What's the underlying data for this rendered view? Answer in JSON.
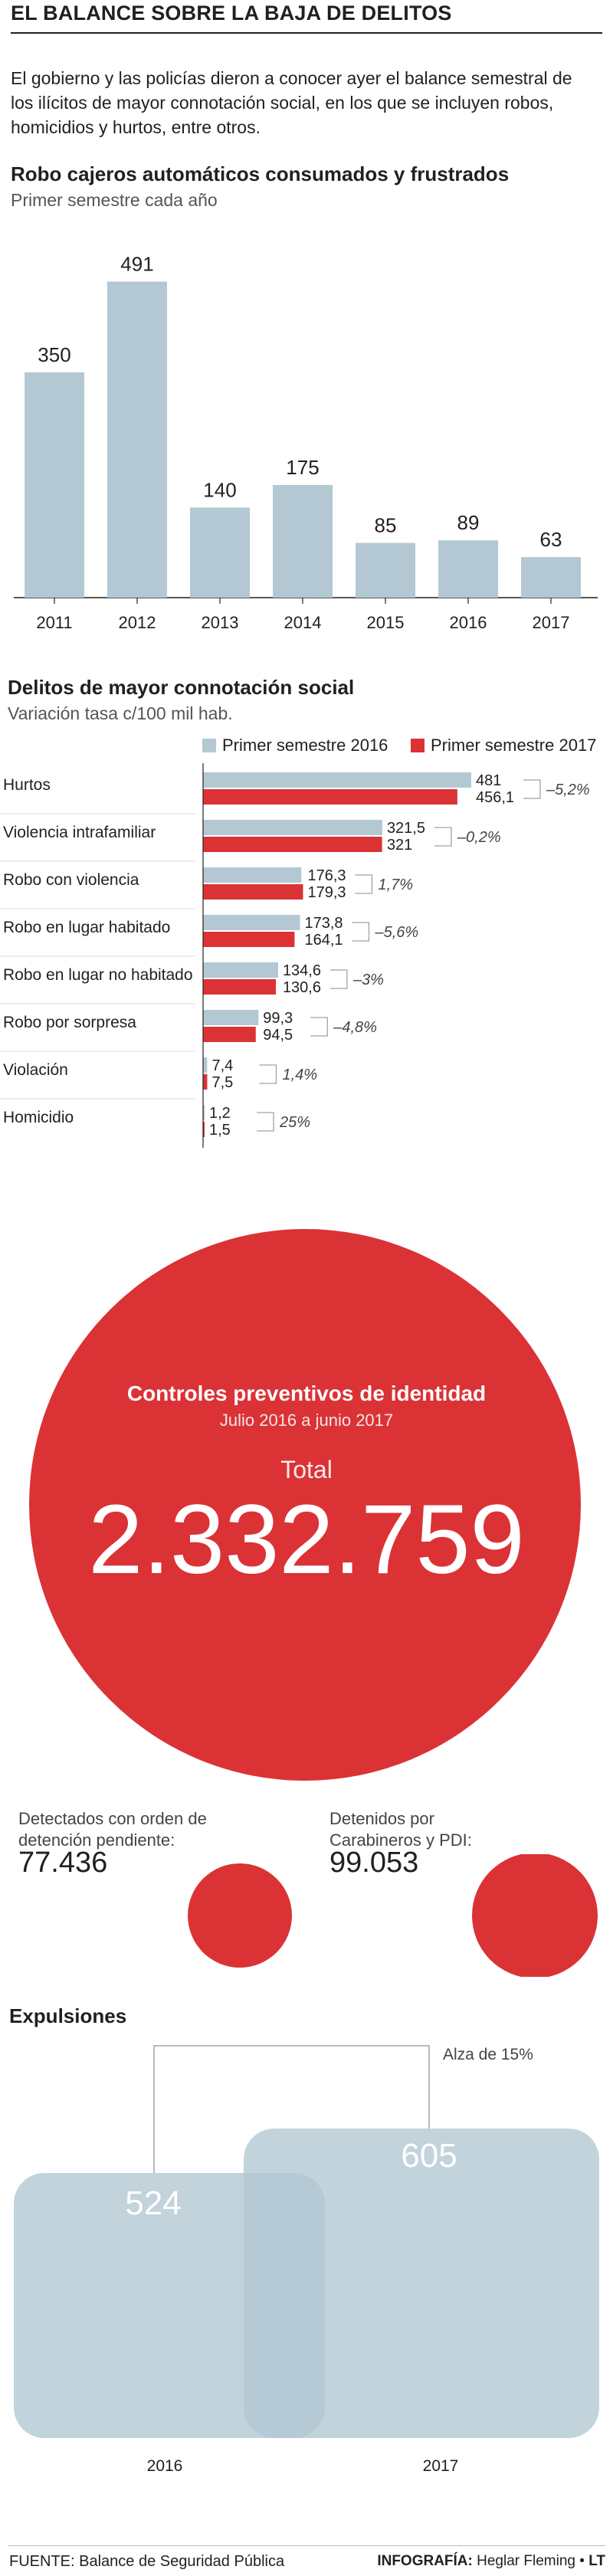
{
  "header": {
    "title": "EL BALANCE SOBRE LA BAJA DE DELITOS",
    "intro": "El gobierno y las policías dieron a conocer ayer el balance semestral de los ilícitos de mayor connotación social, en los que se incluyen robos, homicidios y hurtos, entre otros."
  },
  "colors": {
    "blue": "#b3c8d3",
    "red": "#db3236",
    "dark": "#231f20"
  },
  "chart_data": [
    {
      "type": "bar",
      "title": "Robo cajeros automáticos consumados y frustrados",
      "subtitle": "Primer semestre cada año",
      "categories": [
        "2011",
        "2012",
        "2013",
        "2014",
        "2015",
        "2016",
        "2017"
      ],
      "values": [
        350,
        491,
        140,
        175,
        85,
        89,
        63
      ],
      "value_labels": [
        "350",
        "491",
        "140",
        "175",
        "85",
        "89",
        "63"
      ],
      "ylim": [
        0,
        500
      ],
      "grid": false
    },
    {
      "type": "bar",
      "orientation": "horizontal",
      "title": "Delitos de mayor connotación social",
      "subtitle": "Variación tasa c/100 mil hab.",
      "categories": [
        "Hurtos",
        "Violencia intrafamiliar",
        "Robo con violencia",
        "Robo en lugar habitado",
        "Robo en lugar no habitado",
        "Robo por sorpresa",
        "Violación",
        "Homicidio"
      ],
      "series": [
        {
          "name": "Primer semestre 2016",
          "values": [
            481,
            321.5,
            176.3,
            173.8,
            134.6,
            99.3,
            7.4,
            1.2
          ],
          "labels": [
            "481",
            "321,5",
            "176,3",
            "173,8",
            "134,6",
            "99,3",
            "7,4",
            "1,2"
          ]
        },
        {
          "name": "Primer semestre 2017",
          "values": [
            456.1,
            321,
            179.3,
            164.1,
            130.6,
            94.5,
            7.5,
            1.5
          ],
          "labels": [
            "456,1",
            "321",
            "179,3",
            "164,1",
            "130,6",
            "94,5",
            "7,5",
            "1,5"
          ]
        }
      ],
      "variation_labels": [
        "–5,2%",
        "–0,2%",
        "1,7%",
        "–5,6%",
        "–3%",
        "–4,8%",
        "1,4%",
        "25%"
      ],
      "legend": "top-right"
    },
    {
      "type": "bubble",
      "title": "Controles preventivos de identidad",
      "subtitle": "Julio 2016 a junio 2017",
      "total_label": "Total",
      "total_value": 2332759,
      "total_text": "2.332.759",
      "items": [
        {
          "label": "Detectados con orden de detención pendiente:",
          "value": 77436,
          "text": "77.436"
        },
        {
          "label": "Detenidos por Carabineros y PDI:",
          "value": 99053,
          "text": "99.053"
        }
      ]
    },
    {
      "type": "area",
      "title": "Expulsiones",
      "annotation": "Alza de 15%",
      "categories": [
        "2016",
        "2017"
      ],
      "values": [
        524,
        605
      ],
      "value_labels": [
        "524",
        "605"
      ]
    }
  ],
  "footer": {
    "source": "FUENTE: Balance de Seguridad Pública",
    "credit_prefix": "INFOGRAFÍA:",
    "credit_name": "Heglar Fleming",
    "credit_brand": "LT"
  }
}
